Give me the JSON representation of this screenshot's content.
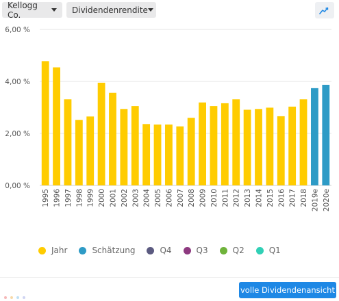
{
  "controls": {
    "company": "Kellogg Co.",
    "metric": "Dividendenrendite",
    "chart_type_icon": "line-chart-icon"
  },
  "colors": {
    "actual": "#ffcc00",
    "estimate": "#2e9bc6",
    "q4": "#5b5a80",
    "q3": "#8e3a80",
    "q2": "#6fb33b",
    "q1": "#31d0b6",
    "button": "#1e88e5"
  },
  "legend": [
    {
      "label": "Jahr",
      "color": "#ffcc00"
    },
    {
      "label": "Schätzung",
      "color": "#2e9bc6"
    },
    {
      "label": "Q4",
      "color": "#5b5a80"
    },
    {
      "label": "Q3",
      "color": "#8e3a80"
    },
    {
      "label": "Q2",
      "color": "#6fb33b"
    },
    {
      "label": "Q1",
      "color": "#31d0b6"
    }
  ],
  "chart_data": {
    "type": "bar",
    "categories": [
      "1995",
      "1996",
      "1997",
      "1998",
      "1999",
      "2000",
      "2001",
      "2002",
      "2003",
      "2004",
      "2005",
      "2006",
      "2007",
      "2008",
      "2009",
      "2010",
      "2011",
      "2012",
      "2013",
      "2014",
      "2015",
      "2016",
      "2017",
      "2018",
      "2019e",
      "2020e"
    ],
    "series": [
      {
        "name": "Jahr",
        "values": [
          4.78,
          4.54,
          3.31,
          2.52,
          2.65,
          3.95,
          3.56,
          2.94,
          3.05,
          2.36,
          2.34,
          2.34,
          2.27,
          2.6,
          3.19,
          3.05,
          3.16,
          3.31,
          2.91,
          2.94,
          2.99,
          2.66,
          3.03,
          3.31,
          null,
          null
        ]
      },
      {
        "name": "Schätzung",
        "values": [
          null,
          null,
          null,
          null,
          null,
          null,
          null,
          null,
          null,
          null,
          null,
          null,
          null,
          null,
          null,
          null,
          null,
          null,
          null,
          null,
          null,
          null,
          null,
          null,
          3.74,
          3.87
        ]
      }
    ],
    "yticks": [
      "0,00 %",
      "2,00 %",
      "4,00 %",
      "6,00 %"
    ],
    "ylim": [
      0,
      6
    ],
    "grid": true
  },
  "footer": {
    "button_label": "volle Dividendenansicht"
  }
}
